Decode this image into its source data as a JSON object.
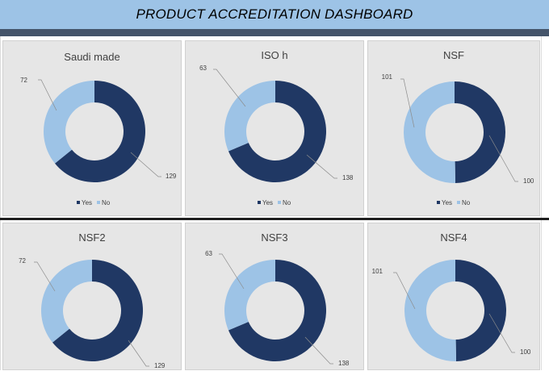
{
  "header": {
    "title": "PRODUCT ACCREDITATION DASHBOARD"
  },
  "colors": {
    "yes": "#203864",
    "no": "#9dc3e6",
    "header_bg": "#9dc3e6",
    "header_rule": "#44546a"
  },
  "legend": {
    "yes": "Yes",
    "no": "No"
  },
  "chart_data": [
    {
      "type": "pie",
      "title": "Saudi made",
      "labels": [
        "Yes",
        "No"
      ],
      "values": [
        129,
        72
      ],
      "legend": true
    },
    {
      "type": "pie",
      "title": "ISO h",
      "labels": [
        "Yes",
        "No"
      ],
      "values": [
        138,
        63
      ],
      "legend": true
    },
    {
      "type": "pie",
      "title": "NSF",
      "labels": [
        "Yes",
        "No"
      ],
      "values": [
        100,
        101
      ],
      "legend": true
    },
    {
      "type": "pie",
      "title": "NSF2",
      "labels": [
        "Yes",
        "No"
      ],
      "values": [
        129,
        72
      ],
      "legend": false
    },
    {
      "type": "pie",
      "title": "NSF3",
      "labels": [
        "Yes",
        "No"
      ],
      "values": [
        138,
        63
      ],
      "legend": false
    },
    {
      "type": "pie",
      "title": "NSF4",
      "labels": [
        "Yes",
        "No"
      ],
      "values": [
        100,
        101
      ],
      "legend": false
    }
  ]
}
